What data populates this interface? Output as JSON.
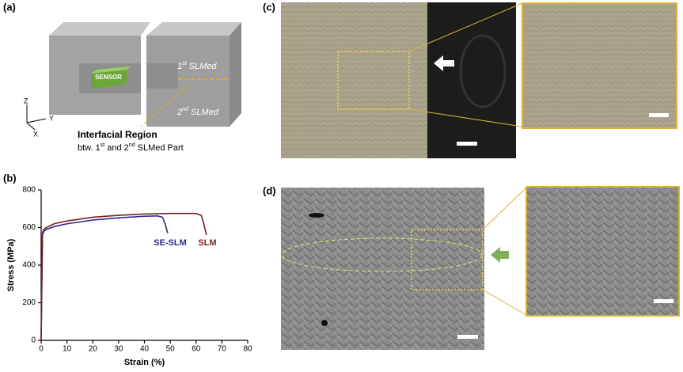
{
  "panels": {
    "a": "(a)",
    "b": "(b)",
    "c": "(c)",
    "d": "(d)"
  },
  "diagram": {
    "sensor": "SENSOR",
    "first": [
      "1",
      "st",
      " SLMed"
    ],
    "second": [
      "2",
      "nd",
      " SLMed"
    ],
    "axes": [
      "Z",
      "Y",
      "X"
    ],
    "region_title": "Interfacial Region",
    "region_text": [
      "btw. 1",
      "st",
      " and 2",
      "nd",
      " SLMed Part"
    ]
  },
  "chart_data": {
    "type": "line",
    "xlabel": "Strain (%)",
    "ylabel": "Stress (MPa)",
    "xlim": [
      0,
      80
    ],
    "xticks": [
      0,
      10,
      20,
      30,
      40,
      50,
      60,
      70,
      80
    ],
    "ylim": [
      0,
      800
    ],
    "yticks": [
      0,
      200,
      400,
      600,
      800
    ],
    "series": [
      {
        "name": "SE-SLM",
        "color": "#2a2a8c",
        "x": [
          0,
          0.5,
          1,
          2,
          5,
          10,
          20,
          30,
          40,
          45,
          47,
          48,
          49
        ],
        "values": [
          0,
          560,
          580,
          590,
          605,
          620,
          640,
          652,
          660,
          662,
          655,
          620,
          570
        ]
      },
      {
        "name": "SLM",
        "color": "#7a1f22",
        "x": [
          0,
          0.5,
          1,
          2,
          5,
          10,
          20,
          30,
          40,
          50,
          60,
          62,
          63,
          64
        ],
        "values": [
          0,
          570,
          590,
          600,
          620,
          635,
          655,
          665,
          672,
          675,
          675,
          665,
          620,
          560
        ]
      }
    ]
  }
}
